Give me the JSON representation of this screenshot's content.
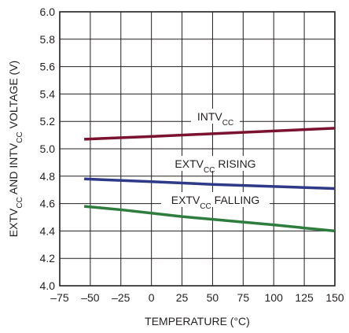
{
  "chart_data": {
    "type": "line",
    "xlabel": "TEMPERATURE (°C)",
    "ylabel": {
      "parts": [
        {
          "text": "EXTV",
          "sub": false
        },
        {
          "text": "CC",
          "sub": true
        },
        {
          "text": " AND INTV",
          "sub": false
        },
        {
          "text": "CC",
          "sub": true
        },
        {
          "text": " VOLTAGE (V)",
          "sub": false
        }
      ]
    },
    "xlim": [
      -75,
      150
    ],
    "ylim": [
      4.0,
      6.0
    ],
    "x_ticks": [
      -75,
      -50,
      -25,
      0,
      25,
      50,
      75,
      100,
      125,
      150
    ],
    "x_tick_labels": [
      "–75",
      "–50",
      "–25",
      "0",
      "25",
      "50",
      "75",
      "100",
      "125",
      "150"
    ],
    "y_ticks": [
      4.0,
      4.2,
      4.4,
      4.6,
      4.8,
      5.0,
      5.2,
      5.4,
      5.6,
      5.8,
      6.0
    ],
    "y_tick_labels": [
      "4.0",
      "4.2",
      "4.4",
      "4.6",
      "4.8",
      "5.0",
      "5.2",
      "5.4",
      "5.6",
      "5.8",
      "6.0"
    ],
    "grid": true,
    "colors": {
      "grid": "#231f20",
      "text": "#231f20"
    },
    "series": [
      {
        "key": "intvcc",
        "label_parts": [
          {
            "text": "INTV",
            "sub": false
          },
          {
            "text": "CC",
            "sub": true
          }
        ],
        "color": "#7a1230",
        "x": [
          -55,
          0,
          50,
          100,
          150
        ],
        "y": [
          5.07,
          5.09,
          5.11,
          5.13,
          5.15
        ]
      },
      {
        "key": "extvcc-rising",
        "label_parts": [
          {
            "text": "EXTV",
            "sub": false
          },
          {
            "text": "CC",
            "sub": true
          },
          {
            "text": " RISING",
            "sub": false
          }
        ],
        "color": "#2e3a87",
        "x": [
          -55,
          0,
          50,
          100,
          150
        ],
        "y": [
          4.78,
          4.76,
          4.74,
          4.725,
          4.71
        ]
      },
      {
        "key": "extvcc-falling",
        "label_parts": [
          {
            "text": "EXTV",
            "sub": false
          },
          {
            "text": "CC",
            "sub": true
          },
          {
            "text": " FALLING",
            "sub": false
          }
        ],
        "color": "#2f7d3e",
        "x": [
          -55,
          -25,
          0,
          25,
          50,
          75,
          100,
          125,
          150
        ],
        "y": [
          4.58,
          4.555,
          4.53,
          4.505,
          4.485,
          4.465,
          4.445,
          4.422,
          4.4
        ]
      }
    ]
  }
}
